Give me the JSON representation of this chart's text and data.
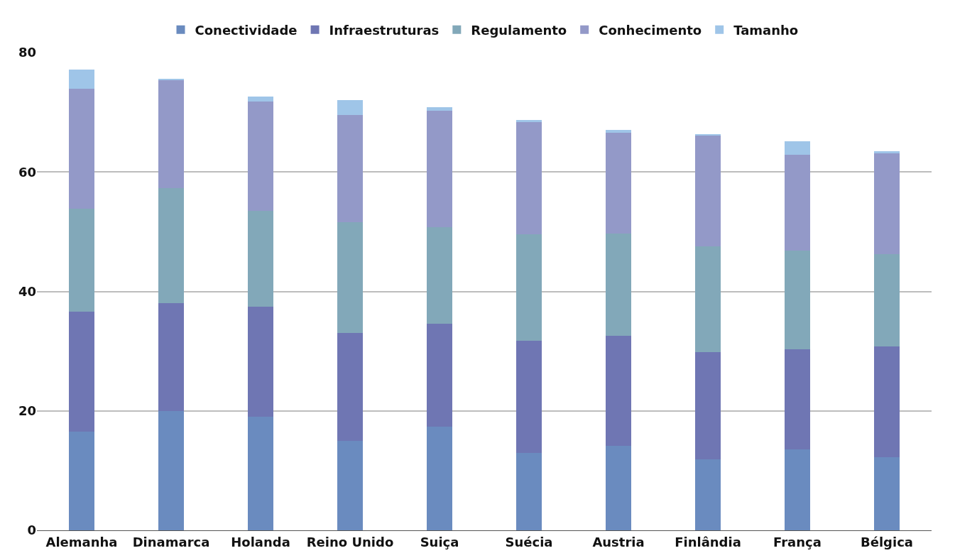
{
  "chart_data": {
    "type": "bar",
    "stacked": true,
    "categories": [
      "Alemanha",
      "Dinamarca",
      "Holanda",
      "Reino Unido",
      "Suiça",
      "Suécia",
      "Austria",
      "Finlândia",
      "França",
      "Bélgica"
    ],
    "series": [
      {
        "name": "Conectividade",
        "color": "#6a8bbf",
        "values": [
          16.5,
          20.0,
          19.0,
          15.0,
          17.4,
          13.0,
          14.2,
          11.9,
          13.6,
          12.2
        ]
      },
      {
        "name": "Infraestruturas",
        "color": "#6f76b3",
        "values": [
          20.1,
          18.0,
          18.5,
          18.0,
          17.2,
          18.7,
          18.4,
          17.9,
          16.7,
          18.6
        ]
      },
      {
        "name": "Regulamento",
        "color": "#82a8b9",
        "values": [
          17.2,
          19.3,
          16.0,
          18.6,
          16.1,
          17.9,
          17.1,
          17.8,
          16.5,
          15.4
        ]
      },
      {
        "name": "Conhecimento",
        "color": "#9399c8",
        "values": [
          20.1,
          18.1,
          18.3,
          17.9,
          19.6,
          18.7,
          16.9,
          18.5,
          16.1,
          16.9
        ]
      },
      {
        "name": "Tamanho",
        "color": "#9fc5e8",
        "values": [
          3.3,
          0.2,
          0.8,
          2.5,
          0.5,
          0.4,
          0.4,
          0.2,
          2.3,
          0.4
        ]
      }
    ],
    "ylim": [
      0,
      80
    ],
    "yticks": [
      0,
      20,
      40,
      60,
      80
    ],
    "grid": "y",
    "legend": "top"
  }
}
